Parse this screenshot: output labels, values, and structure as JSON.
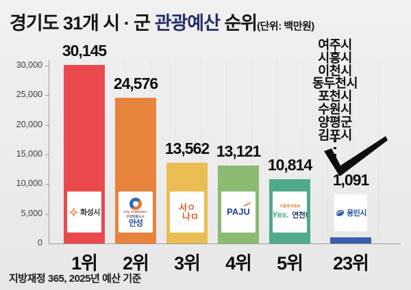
{
  "title": {
    "prefix": "경기도 31개 시 · 군 ",
    "highlight": "관광예산",
    "suffix": " 순위",
    "unit": "(단위: 백만원)",
    "highlight_color": "#232e6b"
  },
  "footer": "지방재정 365, 2025년 예산 기준",
  "y_axis": {
    "ticks": [
      "30,000",
      "25,000",
      "20,000",
      "15,000",
      "10,000",
      "5,000",
      "0"
    ]
  },
  "bars": [
    {
      "rank": "1위",
      "city": "화성시",
      "value": "30,145",
      "value_num": 30145,
      "color": "#ea4a4d",
      "logo": {
        "text": "화성시"
      }
    },
    {
      "rank": "2위",
      "city": "안성시",
      "value": "24,576",
      "value_num": 24576,
      "color": "#e8833c",
      "logo": {
        "eng": "City of Masters",
        "sub": "안성맞춤도시",
        "text": "안성"
      }
    },
    {
      "rank": "3위",
      "city": "성남시",
      "value": "13,562",
      "value_num": 13562,
      "color": "#ebbc51",
      "logo": {
        "line1": "서ㅇ",
        "line2": "나ㅁ"
      }
    },
    {
      "rank": "4위",
      "city": "파주시",
      "value": "13,121",
      "value_num": 13121,
      "color": "#8cba72",
      "logo": {
        "text": "PAJU"
      }
    },
    {
      "rank": "5위",
      "city": "연천군",
      "value": "10,814",
      "value_num": 10814,
      "color": "#4fa98c",
      "logo": {
        "sub": "다함께 미래로",
        "yes": "Yes.",
        "text": "연천!"
      }
    },
    {
      "rank": "23위",
      "city": "용인시",
      "value": "1,091",
      "value_num": 1091,
      "color": "#3a5ead",
      "logo": {
        "text": "용인시"
      }
    }
  ],
  "side_list": {
    "items": [
      "여주시",
      "시흥시",
      "이천시",
      "동두천시",
      "포천시",
      "수원시",
      "양평군",
      "김포시"
    ],
    "ellipsis": "⋮"
  },
  "chart_data": {
    "type": "bar",
    "title": "경기도 31개 시 · 군 관광예산 순위",
    "unit_label": "단위: 백만원",
    "categories": [
      "1위",
      "2위",
      "3위",
      "4위",
      "5위",
      "23위"
    ],
    "cities": [
      "화성시",
      "안성시",
      "성남시",
      "파주시",
      "연천군",
      "용인시"
    ],
    "values": [
      30145,
      24576,
      13562,
      13121,
      10814,
      1091
    ],
    "bar_colors": [
      "#ea4a4d",
      "#e8833c",
      "#ebbc51",
      "#8cba72",
      "#4fa98c",
      "#3a5ead"
    ],
    "yticks": [
      0,
      5000,
      10000,
      15000,
      20000,
      25000,
      30000
    ],
    "ylim": [
      0,
      32000
    ],
    "grid": "faint vertical lines",
    "legend": "none",
    "annotations": {
      "right_list": [
        "여주시",
        "시흥시",
        "이천시",
        "동두천시",
        "포천시",
        "수원시",
        "양평군",
        "김포시"
      ],
      "right_list_ellipsis": "⋮",
      "arrow": "black checkmark swoosh pointing toward 23위 bar"
    },
    "source": "지방재정 365, 2025년 예산 기준"
  }
}
